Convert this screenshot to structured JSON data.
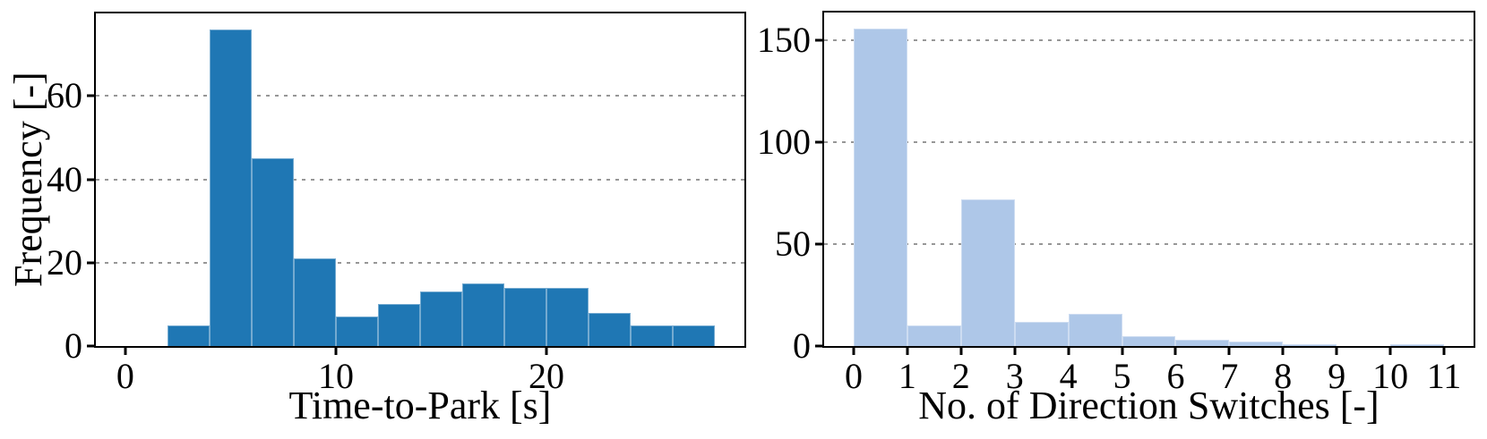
{
  "figure": {
    "background": "#ffffff",
    "text_color": "#000000",
    "grid_color": "#979797",
    "spine_color": "#000000"
  },
  "chart_data": [
    {
      "name": "time-to-park-histogram",
      "type": "bar",
      "title": "",
      "xlabel": "Time-to-Park [s]",
      "ylabel": "Frequency [-]",
      "bar_color": "#1f77b4",
      "bar_edge_color": "rgba(255,255,255,0.38)",
      "bin_start": 2,
      "bin_width": 2,
      "bin_edges": [
        2,
        4,
        6,
        8,
        10,
        12,
        14,
        16,
        18,
        20,
        22,
        24,
        26,
        28
      ],
      "values": [
        5,
        76,
        45,
        21,
        7,
        10,
        13,
        15,
        14,
        14,
        8,
        5,
        5
      ],
      "xlim": [
        -1.4,
        29.4
      ],
      "ylim": [
        0,
        79.8
      ],
      "xticks": [
        0,
        10,
        20
      ],
      "xtick_labels": [
        "0",
        "10",
        "20"
      ],
      "yticks": [
        0,
        20,
        40,
        60
      ],
      "ytick_labels": [
        "0",
        "20",
        "40",
        "60"
      ],
      "grid_y": [
        20,
        40,
        60
      ],
      "grid": "dashed horizontal",
      "legend": null
    },
    {
      "name": "direction-switches-histogram",
      "type": "bar",
      "title": "",
      "xlabel": "No. of Direction Switches [-]",
      "ylabel": "",
      "bar_color": "#aec7e8",
      "bar_edge_color": "rgba(255,255,255,0.38)",
      "bin_start": 0,
      "bin_width": 1,
      "bin_edges": [
        0,
        1,
        2,
        3,
        4,
        5,
        6,
        7,
        8,
        9,
        10,
        11
      ],
      "values": [
        156,
        10,
        72,
        12,
        16,
        5,
        3,
        2,
        1,
        0,
        1
      ],
      "xlim": [
        -0.55,
        11.55
      ],
      "ylim": [
        0,
        163.8
      ],
      "xticks": [
        0,
        1,
        2,
        3,
        4,
        5,
        6,
        7,
        8,
        9,
        10,
        11
      ],
      "xtick_labels": [
        "0",
        "1",
        "2",
        "3",
        "4",
        "5",
        "6",
        "7",
        "8",
        "9",
        "10",
        "11"
      ],
      "yticks": [
        0,
        50,
        100,
        150
      ],
      "ytick_labels": [
        "0",
        "50",
        "100",
        "150"
      ],
      "grid_y": [
        50,
        100,
        150
      ],
      "grid": "dashed horizontal",
      "legend": null
    }
  ]
}
